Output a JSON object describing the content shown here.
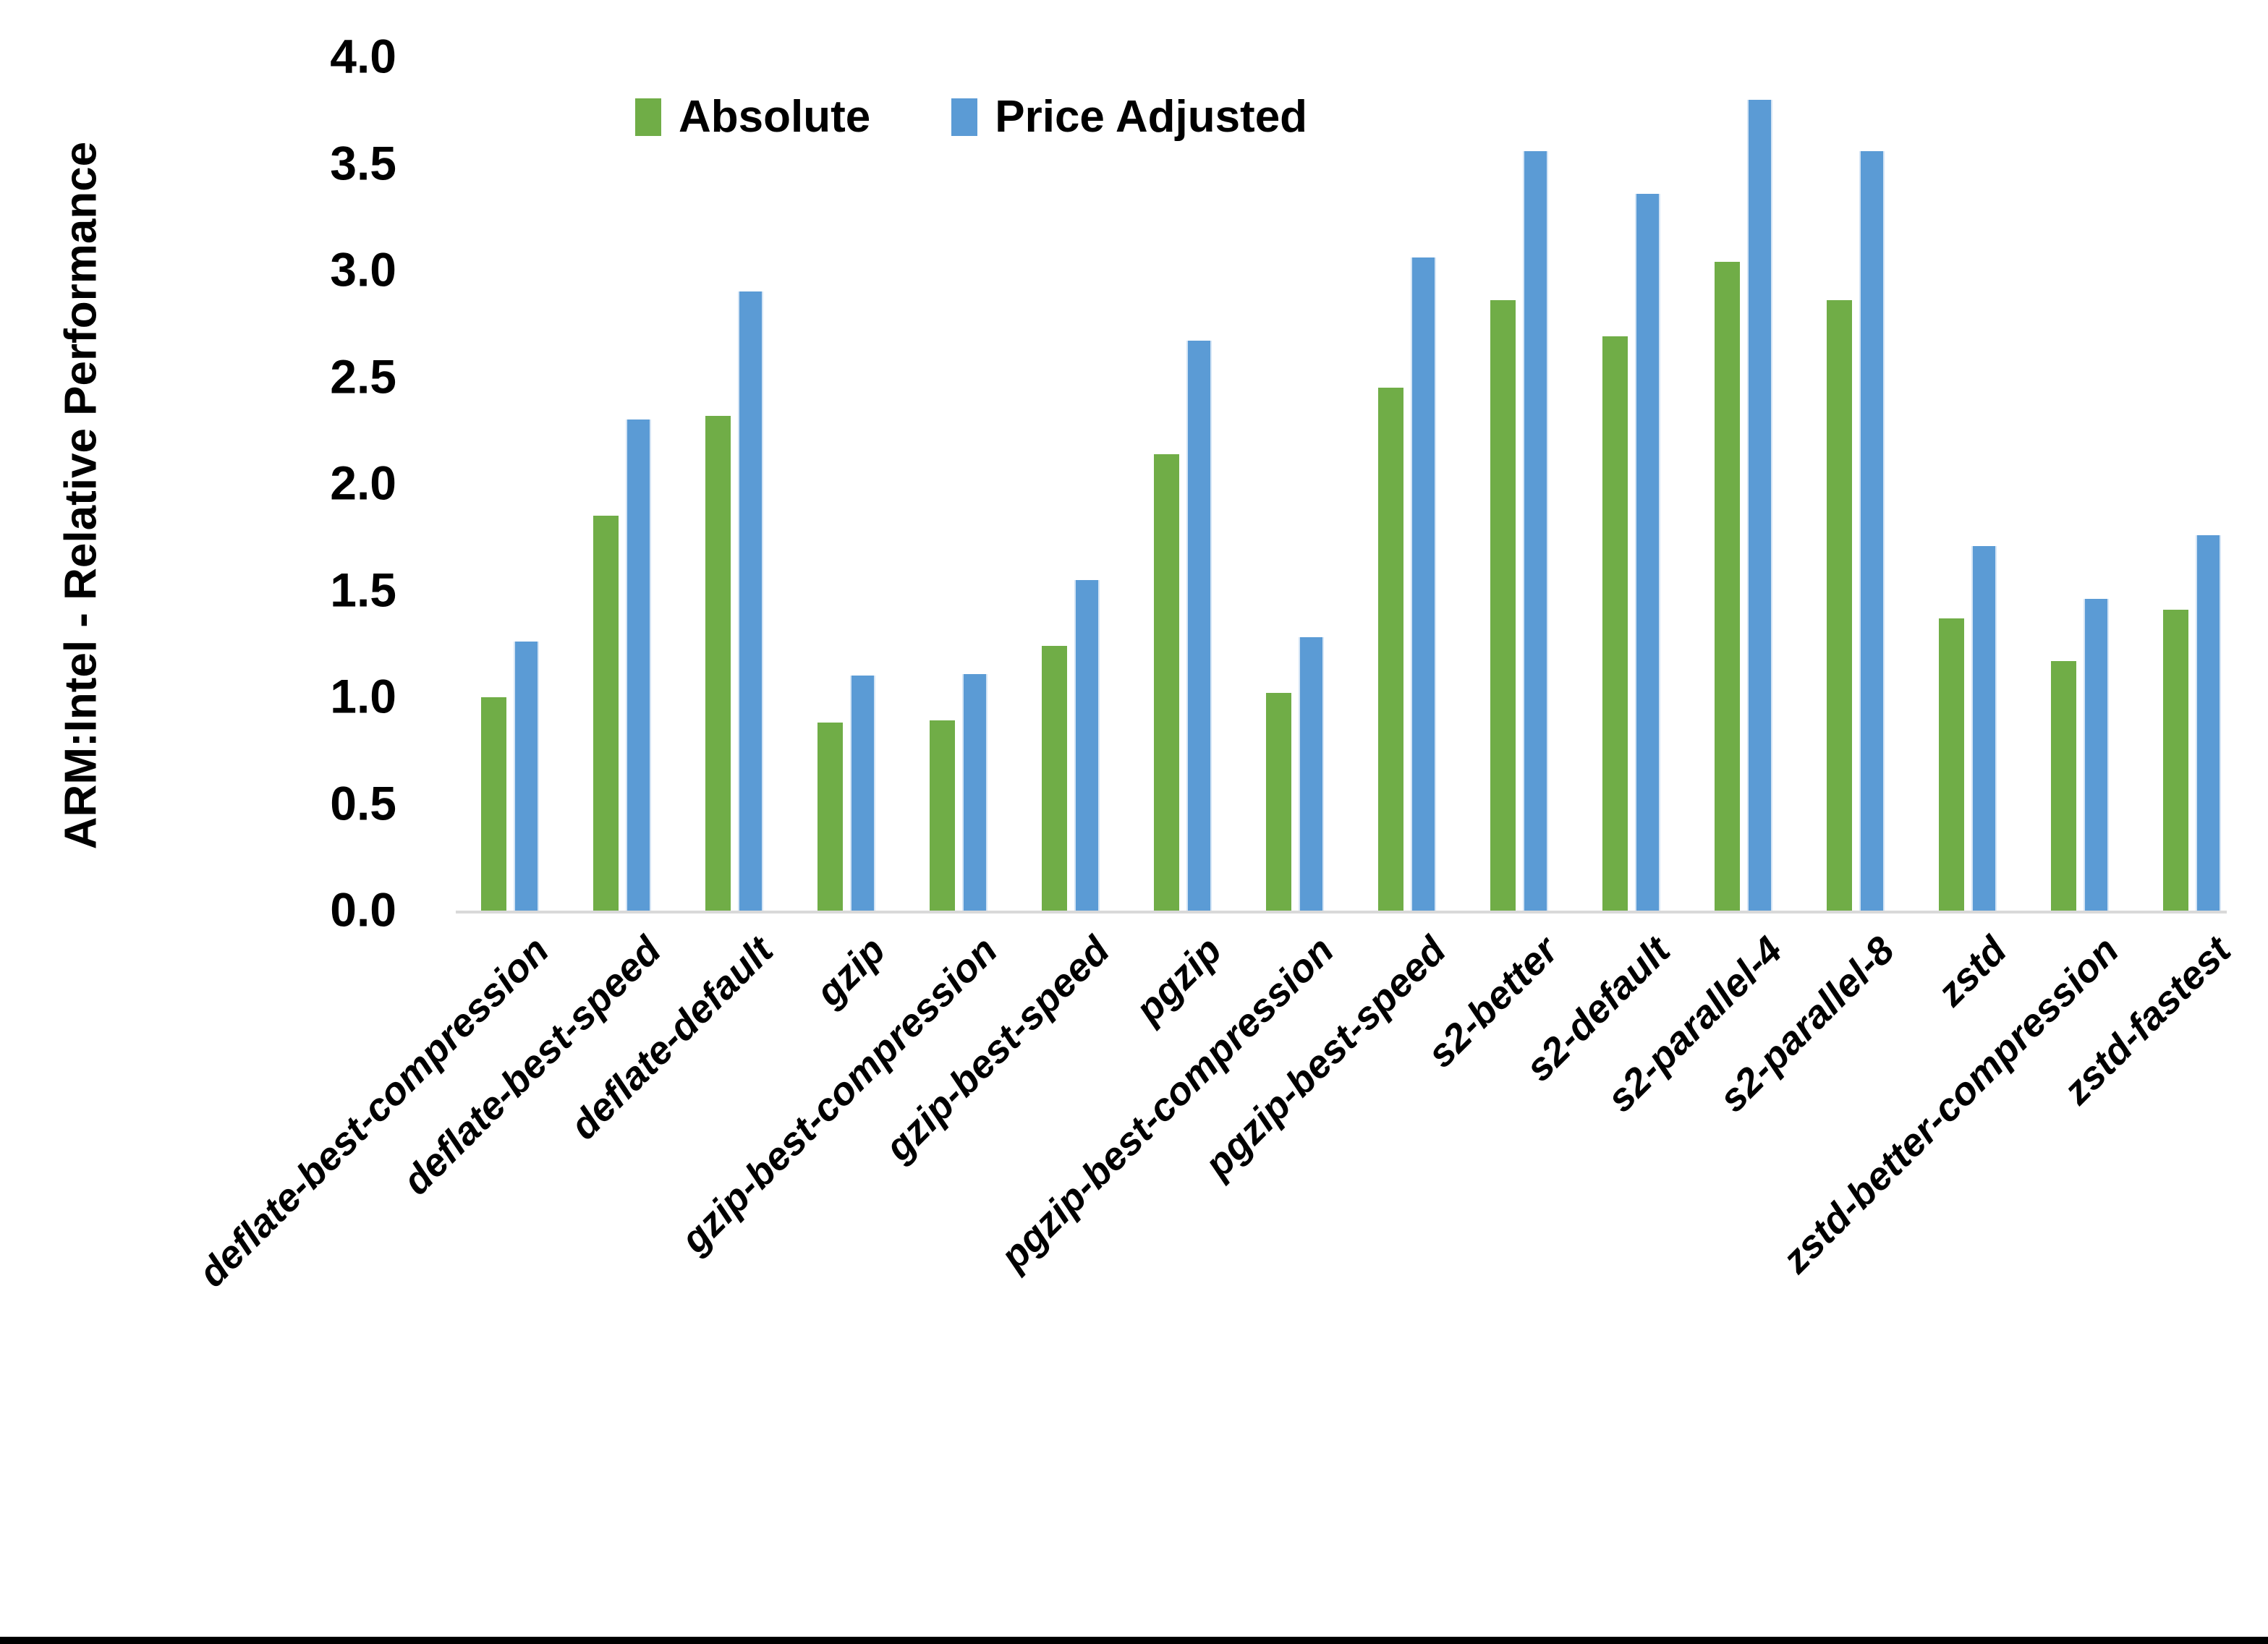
{
  "page": {
    "background": "#ffffff",
    "bottom_border_color": "#000000"
  },
  "chart_data": {
    "type": "bar",
    "title": "",
    "xlabel": "",
    "ylabel": "ARM:Intel - Relative Performance",
    "ylim": [
      0,
      4.0
    ],
    "ytick_step": 0.5,
    "yticks": [
      "0.0",
      "0.5",
      "1.0",
      "1.5",
      "2.0",
      "2.5",
      "3.0",
      "3.5",
      "4.0"
    ],
    "grid": false,
    "legend_position": "top-center",
    "axis_line_color": "#D9D9D9",
    "text_color": "#000000",
    "categories": [
      "deflate-best-compression",
      "deflate-best-speed",
      "deflate-default",
      "gzip",
      "gzip-best-compression",
      "gzip-best-speed",
      "pgzip",
      "pgzip-best-compression",
      "pgzip-best-speed",
      "s2-better",
      "s2-default",
      "s2-parallel-4",
      "s2-parallel-8",
      "zstd",
      "zstd-better-compression",
      "zstd-fastest"
    ],
    "series": [
      {
        "name": "Absolute",
        "color": "#70AD47",
        "values": [
          1.0,
          1.85,
          2.32,
          0.88,
          0.89,
          1.24,
          2.14,
          1.02,
          2.45,
          2.86,
          2.69,
          3.04,
          2.86,
          1.37,
          1.17,
          1.41
        ]
      },
      {
        "name": "Price Adjusted",
        "color": "#5B9BD5",
        "values": [
          1.26,
          2.3,
          2.9,
          1.1,
          1.11,
          1.55,
          2.67,
          1.28,
          3.06,
          3.56,
          3.36,
          3.8,
          3.56,
          1.71,
          1.46,
          1.76
        ]
      }
    ]
  }
}
